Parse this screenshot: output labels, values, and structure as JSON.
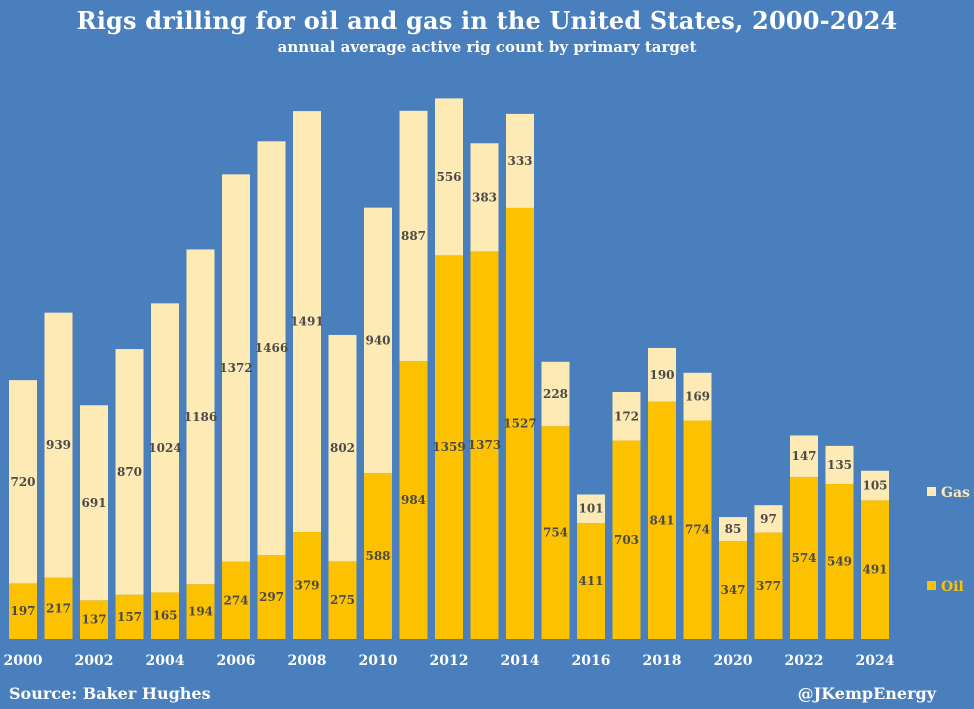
{
  "chart_data": {
    "type": "bar",
    "stacked": true,
    "title": "Rigs drilling for oil and gas in the United States, 2000-2024",
    "subtitle": "annual average active rig count by primary target",
    "categories": [
      2000,
      2001,
      2002,
      2003,
      2004,
      2005,
      2006,
      2007,
      2008,
      2009,
      2010,
      2011,
      2012,
      2013,
      2014,
      2015,
      2016,
      2017,
      2018,
      2019,
      2020,
      2021,
      2022,
      2023,
      2024
    ],
    "x_tick_labels": [
      "2000",
      "2002",
      "2004",
      "2006",
      "2008",
      "2010",
      "2012",
      "2014",
      "2016",
      "2018",
      "2020",
      "2022",
      "2024"
    ],
    "series": [
      {
        "name": "Oil",
        "color": "#fcc100",
        "values": [
          197,
          217,
          137,
          157,
          165,
          194,
          274,
          297,
          379,
          275,
          588,
          984,
          1359,
          1373,
          1527,
          754,
          411,
          703,
          841,
          774,
          347,
          377,
          574,
          549,
          491
        ]
      },
      {
        "name": "Gas",
        "color": "#feeab5",
        "values": [
          720,
          939,
          691,
          870,
          1024,
          1186,
          1372,
          1466,
          1491,
          802,
          940,
          887,
          556,
          383,
          333,
          228,
          101,
          172,
          190,
          169,
          85,
          97,
          147,
          135,
          105
        ]
      }
    ],
    "ylim": [
      0,
      1950
    ],
    "grid": false,
    "legend_position": "right"
  },
  "footer": {
    "source": "Source: Baker Hughes",
    "credit": "@JKempEnergy"
  },
  "colors": {
    "background": "#4a7fbd",
    "oil": "#fcc100",
    "gas": "#feeab5"
  }
}
